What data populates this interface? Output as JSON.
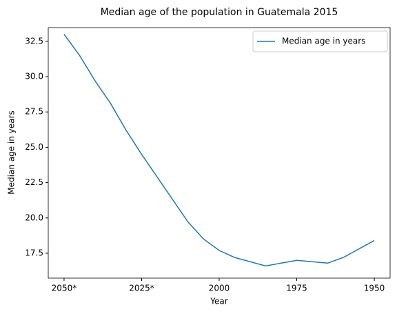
{
  "chart_data": {
    "type": "line",
    "title": "Median age of the population in Guatemala 2015",
    "xlabel": "Year",
    "ylabel": "Median age in years",
    "categories": [
      "2050*",
      null,
      null,
      null,
      null,
      "2025*",
      null,
      null,
      null,
      null,
      "2000",
      null,
      null,
      null,
      null,
      "1975",
      null,
      null,
      null,
      null,
      "1950"
    ],
    "series": [
      {
        "name": "Median age in years",
        "color": "#1f77b4",
        "values": [
          33.0,
          31.5,
          29.7,
          28.1,
          26.2,
          24.5,
          22.9,
          21.3,
          19.7,
          18.5,
          17.7,
          17.2,
          16.9,
          16.6,
          16.8,
          17.0,
          16.9,
          16.8,
          17.2,
          17.8,
          18.4
        ]
      }
    ],
    "ylim": [
      15.74,
      33.47
    ],
    "yticks": [
      17.5,
      {
        "value": 20,
        "label": "20.0"
      },
      22.5,
      {
        "value": 25,
        "label": "25.0"
      },
      27.5,
      {
        "value": 30,
        "label": "30.0"
      },
      32.5
    ],
    "legend": "upper right",
    "grid": false
  }
}
